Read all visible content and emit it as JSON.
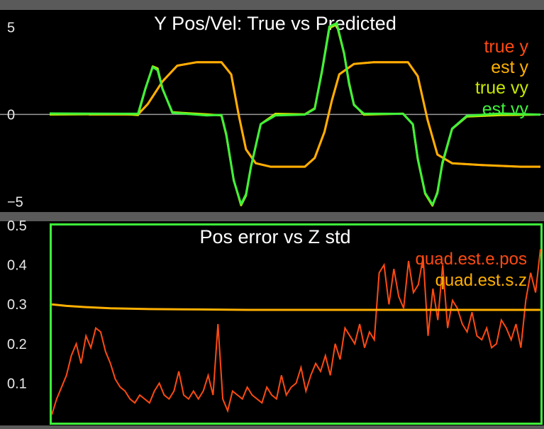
{
  "chart_data": [
    {
      "type": "line",
      "title": "Y Pos/Vel: True vs Predicted",
      "xlabel": "",
      "ylabel": "",
      "xlim": [
        0,
        10
      ],
      "ylim": [
        -5.6,
        6
      ],
      "ytick_values": [
        5,
        0,
        -5
      ],
      "ytick_labels": [
        "5",
        "0",
        "−5"
      ],
      "grid_lines": [
        0
      ],
      "legend_position": "top-right",
      "series": [
        {
          "name": "true y",
          "color": "#ff4a12",
          "x": [
            0.8,
            1.5,
            1.8,
            2.0,
            2.3,
            2.6,
            3.0,
            3.5,
            3.7,
            3.85,
            4.0,
            4.2,
            4.5,
            5.2,
            5.4,
            5.6,
            5.75,
            5.9,
            6.2,
            6.6,
            7.0,
            7.3,
            7.5,
            7.7,
            7.9,
            8.2,
            8.8,
            9.6,
            10
          ],
          "y": [
            0,
            0,
            0,
            0.6,
            1.9,
            2.8,
            3.0,
            3.0,
            2.3,
            0.0,
            -2.0,
            -2.8,
            -3.0,
            -3.0,
            -2.5,
            -1.0,
            0.8,
            2.3,
            2.9,
            3.0,
            3.0,
            3.0,
            2.2,
            -0.3,
            -2.3,
            -2.8,
            -2.9,
            -3.0,
            -3.0
          ]
        },
        {
          "name": "est y",
          "color": "#ffb000",
          "x": [
            0.8,
            1.5,
            1.8,
            2.0,
            2.3,
            2.6,
            3.0,
            3.5,
            3.7,
            3.85,
            4.0,
            4.2,
            4.5,
            5.2,
            5.4,
            5.6,
            5.75,
            5.9,
            6.2,
            6.6,
            7.0,
            7.3,
            7.5,
            7.7,
            7.9,
            8.2,
            8.8,
            9.6,
            10
          ],
          "y": [
            0,
            0,
            0,
            0.6,
            1.9,
            2.8,
            3.0,
            3.0,
            2.3,
            0.0,
            -2.0,
            -2.8,
            -3.0,
            -3.0,
            -2.5,
            -1.0,
            0.8,
            2.3,
            2.9,
            3.0,
            3.0,
            3.0,
            2.2,
            -0.3,
            -2.3,
            -2.8,
            -2.9,
            -3.0,
            -3.0
          ]
        },
        {
          "name": "true vy",
          "color": "#c8e600",
          "x": [
            0,
            1.5,
            1.8,
            1.95,
            2.1,
            2.2,
            2.3,
            2.5,
            3.2,
            3.5,
            3.6,
            3.75,
            3.9,
            4.0,
            4.1,
            4.3,
            4.6,
            5.2,
            5.4,
            5.55,
            5.7,
            5.85,
            6.0,
            6.1,
            6.2,
            6.4,
            7.2,
            7.4,
            7.5,
            7.65,
            7.8,
            7.9,
            8.0,
            8.2,
            8.5,
            9.2,
            10
          ],
          "y": [
            0,
            0,
            0,
            1.5,
            2.7,
            2.6,
            1.5,
            0.1,
            0,
            0,
            -1.2,
            -3.8,
            -5.2,
            -4.6,
            -3.0,
            -0.6,
            0,
            0,
            0.3,
            2.5,
            5.0,
            5.2,
            3.5,
            1.8,
            0.6,
            0,
            0,
            -0.6,
            -2.5,
            -4.5,
            -5.2,
            -4.5,
            -2.8,
            -0.8,
            -0.1,
            0,
            0
          ]
        },
        {
          "name": "est vy",
          "color": "#3ef23a",
          "x": [
            0,
            1.5,
            1.8,
            1.95,
            2.1,
            2.2,
            2.3,
            2.5,
            3.2,
            3.5,
            3.6,
            3.75,
            3.9,
            4.0,
            4.1,
            4.3,
            4.6,
            5.2,
            5.4,
            5.55,
            5.7,
            5.85,
            6.0,
            6.1,
            6.2,
            6.4,
            7.2,
            7.4,
            7.5,
            7.65,
            7.8,
            7.9,
            8.0,
            8.2,
            8.5,
            9.2,
            10
          ],
          "y": [
            0,
            0,
            0,
            1.5,
            2.7,
            2.6,
            1.5,
            0.1,
            0,
            0,
            -1.2,
            -3.8,
            -5.2,
            -4.6,
            -3.0,
            -0.6,
            0,
            0,
            0.3,
            2.5,
            5.0,
            5.2,
            3.5,
            1.8,
            0.6,
            0,
            0,
            -0.6,
            -2.5,
            -4.5,
            -5.2,
            -4.5,
            -2.8,
            -0.8,
            -0.1,
            0,
            0
          ]
        }
      ]
    },
    {
      "type": "line",
      "title": "Pos error vs Z std",
      "xlabel": "",
      "ylabel": "",
      "xlim": [
        0,
        10
      ],
      "ylim": [
        0,
        0.5
      ],
      "ytick_values": [
        0.5,
        0.4,
        0.3,
        0.2,
        0.1
      ],
      "ytick_labels": [
        "0.5",
        "0.4",
        "0.3",
        "0.2",
        "0.1"
      ],
      "legend_position": "top-right",
      "series": [
        {
          "name": "quad.est.e.pos",
          "color": "#ff4a12",
          "x": [
            0.0,
            0.1,
            0.2,
            0.3,
            0.4,
            0.5,
            0.6,
            0.7,
            0.8,
            0.9,
            1.0,
            1.1,
            1.2,
            1.3,
            1.4,
            1.5,
            1.6,
            1.7,
            1.8,
            1.9,
            2.0,
            2.1,
            2.2,
            2.3,
            2.4,
            2.5,
            2.6,
            2.7,
            2.8,
            2.9,
            3.0,
            3.1,
            3.2,
            3.3,
            3.4,
            3.5,
            3.6,
            3.7,
            3.8,
            3.9,
            4.0,
            4.1,
            4.2,
            4.3,
            4.4,
            4.5,
            4.6,
            4.7,
            4.8,
            4.9,
            5.0,
            5.1,
            5.2,
            5.3,
            5.4,
            5.5,
            5.6,
            5.7,
            5.8,
            5.9,
            6.0,
            6.1,
            6.2,
            6.3,
            6.4,
            6.5,
            6.6,
            6.7,
            6.8,
            6.9,
            7.0,
            7.1,
            7.2,
            7.3,
            7.4,
            7.5,
            7.6,
            7.7,
            7.8,
            7.9,
            8.0,
            8.1,
            8.2,
            8.3,
            8.4,
            8.5,
            8.6,
            8.7,
            8.8,
            8.9,
            9.0,
            9.1,
            9.2,
            9.3,
            9.4,
            9.5,
            9.6,
            9.7,
            9.8,
            9.9,
            10.0
          ],
          "y": [
            0.02,
            0.06,
            0.09,
            0.12,
            0.17,
            0.2,
            0.15,
            0.22,
            0.19,
            0.24,
            0.23,
            0.18,
            0.15,
            0.11,
            0.09,
            0.08,
            0.06,
            0.05,
            0.07,
            0.06,
            0.05,
            0.08,
            0.1,
            0.07,
            0.06,
            0.08,
            0.13,
            0.07,
            0.06,
            0.08,
            0.06,
            0.08,
            0.12,
            0.07,
            0.25,
            0.06,
            0.03,
            0.08,
            0.07,
            0.06,
            0.09,
            0.07,
            0.06,
            0.05,
            0.09,
            0.07,
            0.06,
            0.12,
            0.07,
            0.09,
            0.1,
            0.14,
            0.08,
            0.12,
            0.15,
            0.13,
            0.17,
            0.12,
            0.2,
            0.16,
            0.24,
            0.22,
            0.2,
            0.25,
            0.19,
            0.23,
            0.21,
            0.38,
            0.4,
            0.3,
            0.39,
            0.32,
            0.29,
            0.41,
            0.33,
            0.35,
            0.42,
            0.22,
            0.34,
            0.26,
            0.4,
            0.24,
            0.31,
            0.29,
            0.25,
            0.23,
            0.28,
            0.22,
            0.21,
            0.24,
            0.19,
            0.2,
            0.26,
            0.24,
            0.21,
            0.25,
            0.19,
            0.31,
            0.38,
            0.33,
            0.44
          ]
        },
        {
          "name": "quad.est.s.z",
          "color": "#ffb000",
          "x": [
            0,
            0.3,
            0.7,
            1.2,
            2.0,
            3.0,
            4.0,
            5.0,
            6.0,
            7.0,
            8.0,
            9.0,
            10
          ],
          "y": [
            0.3,
            0.296,
            0.293,
            0.29,
            0.288,
            0.287,
            0.286,
            0.286,
            0.286,
            0.286,
            0.286,
            0.286,
            0.286
          ]
        }
      ]
    }
  ]
}
